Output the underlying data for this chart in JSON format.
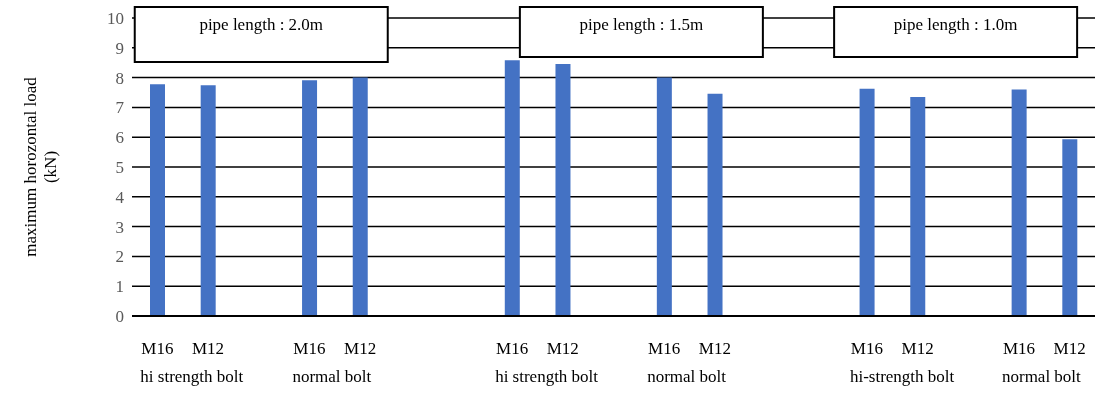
{
  "chart_data": {
    "type": "bar",
    "ylabel": "maximum  horozontal load\n(kN)",
    "categories": [
      "M16",
      "M12",
      null,
      "M16",
      "M12",
      null,
      null,
      "M16",
      "M12",
      null,
      "M16",
      "M12",
      null,
      null,
      "M16",
      "M12",
      null,
      "M16",
      "M12"
    ],
    "values": [
      7.78,
      7.74,
      null,
      7.91,
      8.0,
      null,
      null,
      8.58,
      8.46,
      null,
      8.0,
      7.46,
      null,
      null,
      7.63,
      7.35,
      null,
      7.6,
      5.93
    ],
    "color": "#4472c4",
    "ylim": [
      0,
      10
    ],
    "yticks": [
      0,
      1,
      2,
      3,
      4,
      5,
      6,
      7,
      8,
      9,
      10
    ],
    "grid": "y",
    "annotations": [
      "pipe length : 2.0m",
      "pipe length : 1.5m",
      "pipe length : 1.0m",
      "hi strength bolt",
      "normal bolt",
      "hi strength bolt",
      "normal bolt",
      "hi-strength bolt",
      "normal bolt"
    ]
  }
}
